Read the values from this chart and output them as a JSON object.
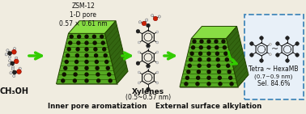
{
  "bg_color": "#f0ece0",
  "title_zsm": "ZSM-12\n1-D pore\n0.57 × 0.61 nm",
  "label_ch3oh": "CH₃OH",
  "label_xylenes": "Xylenes\n(0.5~0.57 nm)",
  "label_tetra": "Tetra ~ HexaMB\n(0.7~0.9 nm)\nSel. 84.6%",
  "label_inner": "Inner pore aromatization",
  "label_external": "External surface alkylation",
  "arrow_color": "#33cc00",
  "dashed_box_color": "#4488bb",
  "text_color": "#111111",
  "zeolite_front": "#55aa22",
  "zeolite_top": "#88dd44",
  "zeolite_right": "#336611",
  "zeolite_dark": "#224400"
}
